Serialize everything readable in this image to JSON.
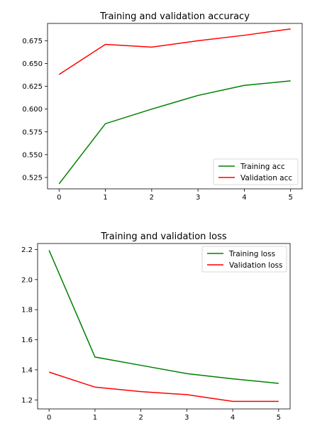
{
  "chart_data": [
    {
      "type": "line",
      "title": "Training and validation accuracy",
      "xlabel": "",
      "ylabel": "",
      "x": [
        0,
        1,
        2,
        3,
        4,
        5
      ],
      "xlim": [
        -0.25,
        5.25
      ],
      "ylim": [
        0.5125,
        0.694
      ],
      "xticks": [
        0,
        1,
        2,
        3,
        4,
        5
      ],
      "yticks": [
        0.525,
        0.55,
        0.575,
        0.6,
        0.625,
        0.65,
        0.675
      ],
      "ytick_labels": [
        "0.525",
        "0.550",
        "0.575",
        "0.600",
        "0.625",
        "0.650",
        "0.675"
      ],
      "grid": false,
      "legend_position": "lower-right",
      "series": [
        {
          "name": "Training acc",
          "color": "#008000",
          "values": [
            0.518,
            0.584,
            0.6,
            0.615,
            0.626,
            0.631
          ]
        },
        {
          "name": "Validation acc",
          "color": "#ff0000",
          "values": [
            0.638,
            0.671,
            0.668,
            0.675,
            0.681,
            0.688
          ]
        }
      ]
    },
    {
      "type": "line",
      "title": "Training and validation loss",
      "xlabel": "",
      "ylabel": "",
      "x": [
        0,
        1,
        2,
        3,
        4,
        5
      ],
      "xlim": [
        -0.25,
        5.25
      ],
      "ylim": [
        1.14,
        2.24
      ],
      "xticks": [
        0,
        1,
        2,
        3,
        4,
        5
      ],
      "yticks": [
        1.2,
        1.4,
        1.6,
        1.8,
        2.0,
        2.2
      ],
      "ytick_labels": [
        "1.2",
        "1.4",
        "1.6",
        "1.8",
        "2.0",
        "2.2"
      ],
      "grid": false,
      "legend_position": "upper-right",
      "series": [
        {
          "name": "Training loss",
          "color": "#008000",
          "values": [
            2.195,
            1.485,
            1.43,
            1.375,
            1.34,
            1.31
          ]
        },
        {
          "name": "Validation loss",
          "color": "#ff0000",
          "values": [
            1.385,
            1.285,
            1.255,
            1.235,
            1.19,
            1.19
          ]
        }
      ]
    }
  ]
}
